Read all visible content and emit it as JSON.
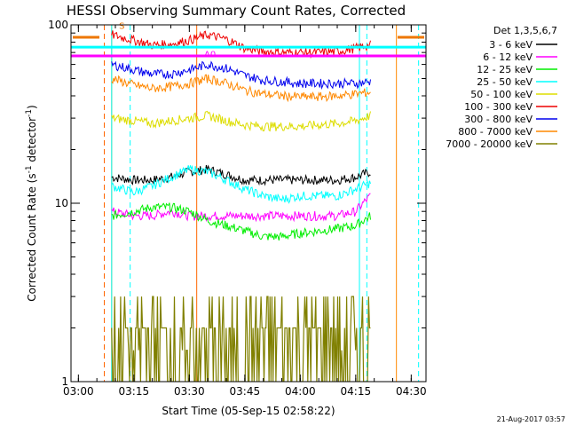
{
  "chart_data": {
    "type": "line",
    "title": "HESSI Observing Summary Count Rates, Corrected",
    "xlabel": "Start Time (05-Sep-15 02:58:22)",
    "ylabel": "Corrected Count Rate (s",
    "ylabel_sup1": "-1",
    "ylabel_mid": " detector",
    "ylabel_sup2": "-1",
    "ylabel_end": ")",
    "yscale": "log",
    "xlim": [
      "02:58",
      "04:34"
    ],
    "ylim": [
      1,
      100
    ],
    "x_ticks": [
      "03:00",
      "03:15",
      "03:30",
      "03:45",
      "04:00",
      "04:15",
      "04:30"
    ],
    "y_ticks": [
      "1",
      "10",
      "100"
    ],
    "legend": {
      "title": "Det 1,3,5,6,7",
      "placement": "right"
    },
    "annotations": [
      {
        "text": "S",
        "x": "03:11",
        "y": 95,
        "color": "#ee7700"
      },
      {
        "text": "A0",
        "x": "03:34",
        "y": 66,
        "color": "#ff00ff"
      }
    ],
    "timestamp": "21-Aug-2017 03:57",
    "series": [
      {
        "name": "3 - 6 keV",
        "color": "#000000",
        "x": [
          "03:09",
          "03:15",
          "03:20",
          "03:25",
          "03:30",
          "03:35",
          "03:40",
          "03:45",
          "03:50",
          "03:55",
          "04:00",
          "04:05",
          "04:10",
          "04:15",
          "04:19"
        ],
        "y": [
          14,
          13.5,
          13.5,
          14,
          15,
          15.5,
          14.5,
          13.5,
          13.5,
          13.5,
          13.5,
          13.5,
          13.5,
          14,
          15
        ]
      },
      {
        "name": "6 - 12 keV",
        "color": "#ff00ff",
        "x": [
          "03:09",
          "03:15",
          "03:20",
          "03:25",
          "03:30",
          "03:35",
          "03:40",
          "03:45",
          "03:50",
          "03:55",
          "04:00",
          "04:05",
          "04:10",
          "04:15",
          "04:19"
        ],
        "y": [
          9,
          8.5,
          8.5,
          9,
          8.5,
          8.5,
          8.5,
          8.5,
          8.5,
          8.5,
          8.5,
          8.5,
          8.5,
          9,
          11
        ]
      },
      {
        "name": "12 - 25 keV",
        "color": "#00ee00",
        "x": [
          "03:09",
          "03:15",
          "03:20",
          "03:25",
          "03:30",
          "03:35",
          "03:40",
          "03:45",
          "03:50",
          "03:55",
          "04:00",
          "04:05",
          "04:10",
          "04:15",
          "04:19"
        ],
        "y": [
          8.5,
          9,
          9.5,
          9.5,
          9,
          8,
          7.5,
          7,
          6.5,
          6.5,
          6.8,
          7,
          7.2,
          7.5,
          8.5
        ]
      },
      {
        "name": "25 - 50 keV",
        "color": "#00ffff",
        "x": [
          "03:09",
          "03:15",
          "03:20",
          "03:25",
          "03:30",
          "03:35",
          "03:40",
          "03:45",
          "03:50",
          "03:55",
          "04:00",
          "04:05",
          "04:10",
          "04:15",
          "04:19"
        ],
        "y": [
          12.5,
          11.5,
          12.5,
          14,
          15.5,
          15,
          13.5,
          12,
          11,
          10.5,
          11,
          11,
          11,
          12,
          13
        ]
      },
      {
        "name": "50 - 100 keV",
        "color": "#dddd00",
        "x": [
          "03:09",
          "03:15",
          "03:20",
          "03:25",
          "03:30",
          "03:35",
          "03:40",
          "03:45",
          "03:50",
          "03:55",
          "04:00",
          "04:05",
          "04:10",
          "04:15",
          "04:19"
        ],
        "y": [
          30,
          29,
          28,
          29,
          30,
          31,
          29,
          27.5,
          27,
          27,
          27,
          27.5,
          28,
          29,
          31
        ]
      },
      {
        "name": "100 - 300 keV",
        "color": "#ee0000",
        "x": [
          "03:09",
          "03:15",
          "03:20",
          "03:25",
          "03:30",
          "03:35",
          "03:40",
          "03:45",
          "03:50",
          "03:55",
          "04:00",
          "04:05",
          "04:10",
          "04:15",
          "04:19"
        ],
        "y": [
          88,
          82,
          77,
          78,
          82,
          88,
          83,
          74,
          71,
          70,
          70,
          70,
          71,
          74,
          77
        ]
      },
      {
        "name": "300 - 800 keV",
        "color": "#0000ee",
        "x": [
          "03:09",
          "03:15",
          "03:20",
          "03:25",
          "03:30",
          "03:35",
          "03:40",
          "03:45",
          "03:50",
          "03:55",
          "04:00",
          "04:05",
          "04:10",
          "04:15",
          "04:19"
        ],
        "y": [
          60,
          56,
          53,
          53,
          56,
          60,
          57,
          52,
          49,
          48,
          47,
          47,
          47,
          47,
          48
        ]
      },
      {
        "name": "800 - 7000 keV",
        "color": "#ff8800",
        "x": [
          "03:09",
          "03:15",
          "03:20",
          "03:25",
          "03:30",
          "03:35",
          "03:40",
          "03:45",
          "03:50",
          "03:55",
          "04:00",
          "04:05",
          "04:10",
          "04:15",
          "04:19"
        ],
        "y": [
          50,
          46,
          44,
          45,
          47,
          50,
          47,
          43,
          41,
          40,
          39.5,
          39.5,
          40,
          41,
          42
        ]
      },
      {
        "name": "7000 - 20000 keV",
        "color": "#808000",
        "x": [
          "03:09",
          "03:15",
          "03:20",
          "03:25",
          "03:30",
          "03:35",
          "03:40",
          "03:45",
          "03:50",
          "03:55",
          "04:00",
          "04:05",
          "04:10",
          "04:15",
          "04:19"
        ],
        "y": [
          2,
          2,
          1.5,
          2,
          2.5,
          2,
          2,
          1.5,
          2,
          2,
          1.5,
          2,
          2,
          2,
          2.5
        ]
      }
    ],
    "horizontal_lines": [
      {
        "y": 75,
        "color": "#00ffff"
      },
      {
        "y": 67,
        "color": "#ff00ff"
      }
    ],
    "vertical_lines": [
      {
        "x": "02:58",
        "color": "#00ffff",
        "style": "solid"
      },
      {
        "x": "03:07",
        "color": "#ff6600",
        "style": "dashed"
      },
      {
        "x": "03:09",
        "color": "#ff8800",
        "style": "solid"
      },
      {
        "x": "03:09",
        "color": "#00ffff",
        "style": "solid"
      },
      {
        "x": "03:14",
        "color": "#00ffff",
        "style": "dashed"
      },
      {
        "x": "03:32",
        "color": "#ff6600",
        "style": "solid"
      },
      {
        "x": "04:16",
        "color": "#00ffff",
        "style": "solid"
      },
      {
        "x": "04:18",
        "color": "#00ffff",
        "style": "dashed"
      },
      {
        "x": "04:26",
        "color": "#ff8800",
        "style": "solid"
      },
      {
        "x": "04:32",
        "color": "#00ffff",
        "style": "dashed"
      }
    ]
  }
}
